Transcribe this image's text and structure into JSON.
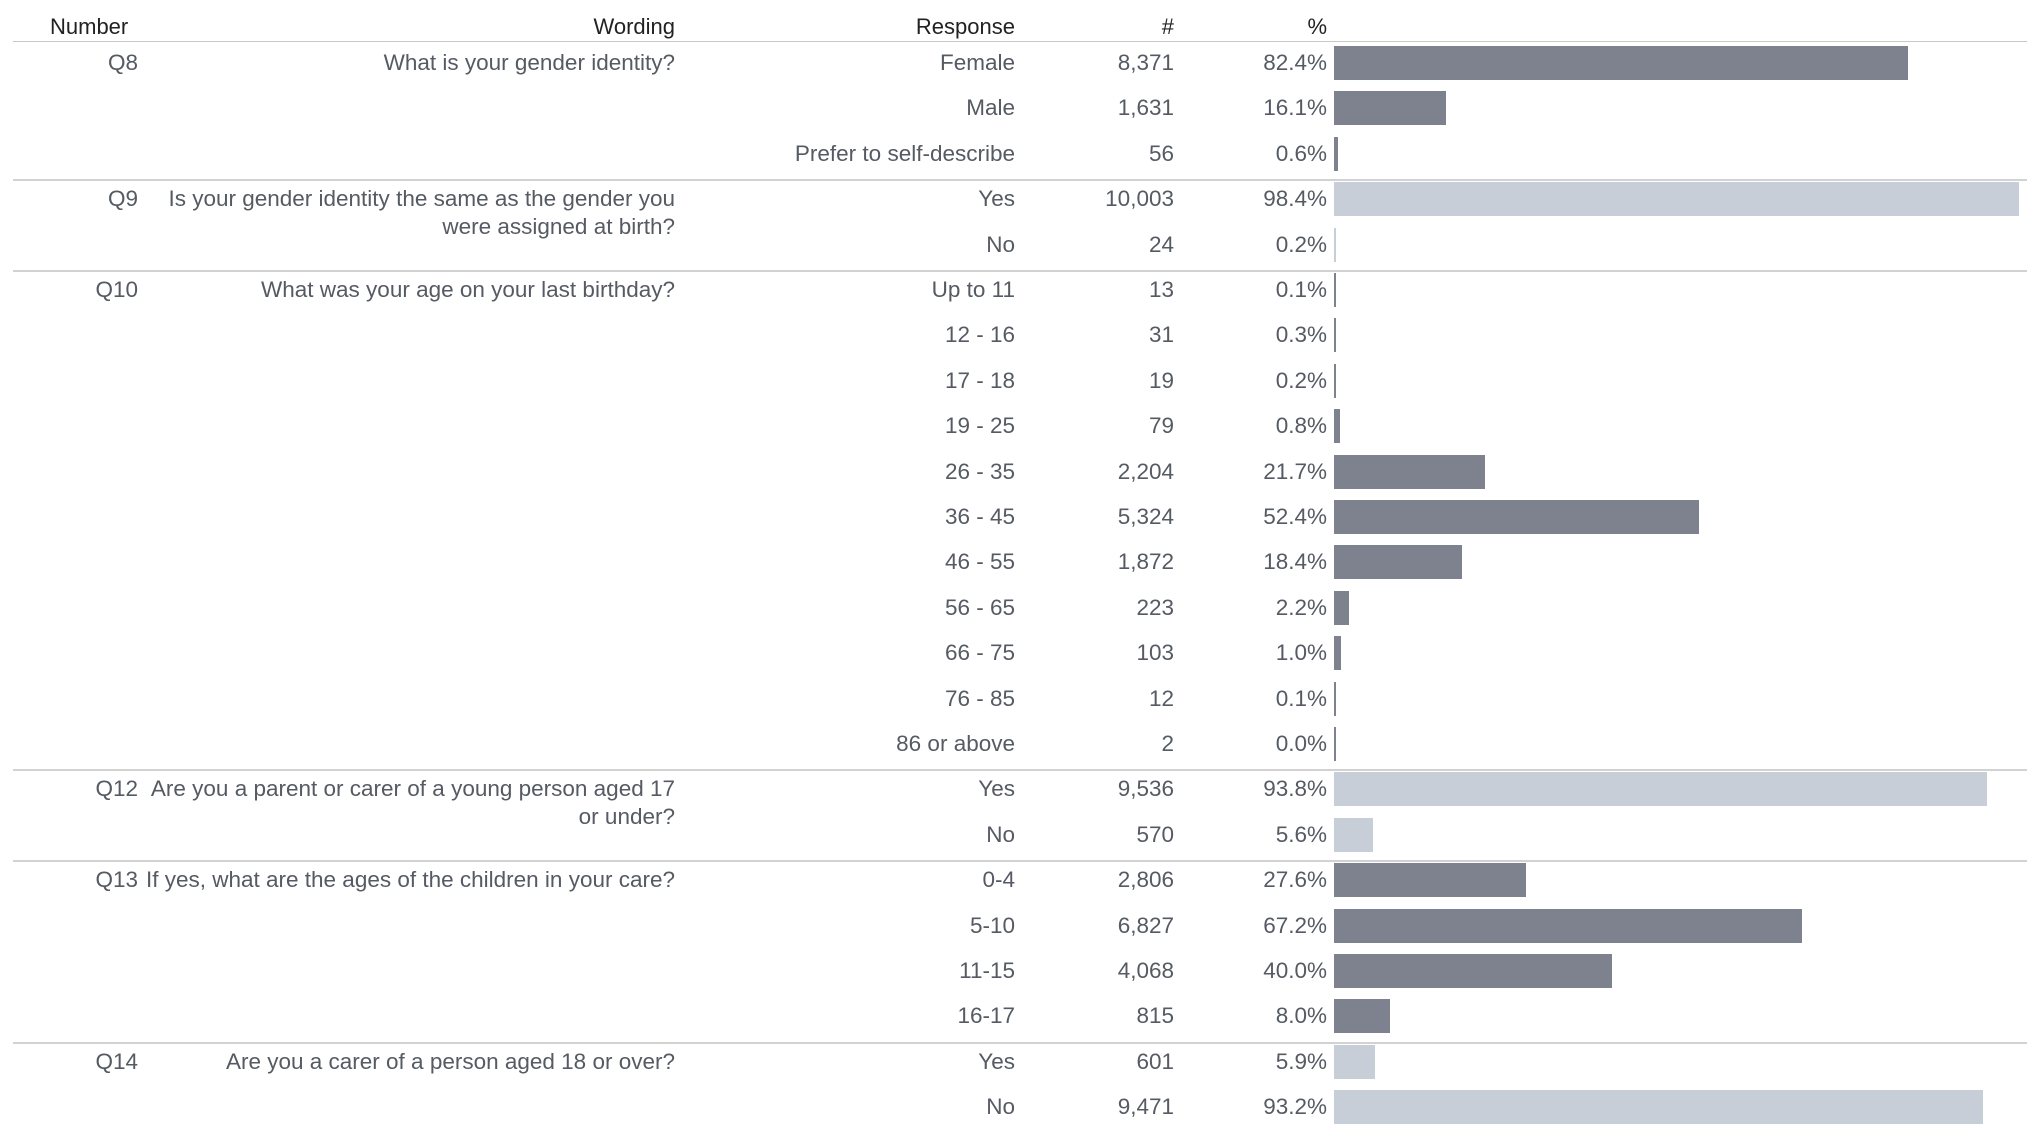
{
  "headers": {
    "number": "Number",
    "wording": "Wording",
    "response": "Response",
    "count": "#",
    "percent": "%"
  },
  "colors": {
    "dark_bar": "#7d828e",
    "light_bar": "#c8ced8",
    "divider": "#d2d2d2"
  },
  "chart_data": {
    "type": "table",
    "value_scale_max": 100,
    "questions": [
      {
        "number": "Q8",
        "wording": "What is your gender identity?",
        "bar_style": "dark",
        "rows": [
          {
            "response": "Female",
            "count": "8,371",
            "percent": "82.4%",
            "value": 82.4
          },
          {
            "response": "Male",
            "count": "1,631",
            "percent": "16.1%",
            "value": 16.1
          },
          {
            "response": "Prefer to self-describe",
            "count": "56",
            "percent": "0.6%",
            "value": 0.6
          }
        ]
      },
      {
        "number": "Q9",
        "wording": "Is your gender identity the same as the gender you were assigned at birth?",
        "bar_style": "light",
        "rows": [
          {
            "response": "Yes",
            "count": "10,003",
            "percent": "98.4%",
            "value": 98.4
          },
          {
            "response": "No",
            "count": "24",
            "percent": "0.2%",
            "value": 0.2
          }
        ]
      },
      {
        "number": "Q10",
        "wording": "What was your age on your last birthday?",
        "bar_style": "dark",
        "rows": [
          {
            "response": "Up to 11",
            "count": "13",
            "percent": "0.1%",
            "value": 0.1
          },
          {
            "response": "12 - 16",
            "count": "31",
            "percent": "0.3%",
            "value": 0.3
          },
          {
            "response": "17 - 18",
            "count": "19",
            "percent": "0.2%",
            "value": 0.2
          },
          {
            "response": "19 - 25",
            "count": "79",
            "percent": "0.8%",
            "value": 0.8
          },
          {
            "response": "26 - 35",
            "count": "2,204",
            "percent": "21.7%",
            "value": 21.7
          },
          {
            "response": "36 - 45",
            "count": "5,324",
            "percent": "52.4%",
            "value": 52.4
          },
          {
            "response": "46 - 55",
            "count": "1,872",
            "percent": "18.4%",
            "value": 18.4
          },
          {
            "response": "56 - 65",
            "count": "223",
            "percent": "2.2%",
            "value": 2.2
          },
          {
            "response": "66 - 75",
            "count": "103",
            "percent": "1.0%",
            "value": 1.0
          },
          {
            "response": "76 - 85",
            "count": "12",
            "percent": "0.1%",
            "value": 0.1
          },
          {
            "response": "86 or above",
            "count": "2",
            "percent": "0.0%",
            "value": 0.0
          }
        ]
      },
      {
        "number": "Q12",
        "wording": "Are you a parent or carer of a young person aged 17 or under?",
        "bar_style": "light",
        "rows": [
          {
            "response": "Yes",
            "count": "9,536",
            "percent": "93.8%",
            "value": 93.8
          },
          {
            "response": "No",
            "count": "570",
            "percent": "5.6%",
            "value": 5.6
          }
        ]
      },
      {
        "number": "Q13",
        "wording": "If yes, what are the ages of the children in your care?",
        "bar_style": "dark",
        "rows": [
          {
            "response": "0-4",
            "count": "2,806",
            "percent": "27.6%",
            "value": 27.6
          },
          {
            "response": "5-10",
            "count": "6,827",
            "percent": "67.2%",
            "value": 67.2
          },
          {
            "response": "11-15",
            "count": "4,068",
            "percent": "40.0%",
            "value": 40.0
          },
          {
            "response": "16-17",
            "count": "815",
            "percent": "8.0%",
            "value": 8.0
          }
        ]
      },
      {
        "number": "Q14",
        "wording": "Are you a carer of a person aged 18 or over?",
        "bar_style": "light",
        "rows": [
          {
            "response": "Yes",
            "count": "601",
            "percent": "5.9%",
            "value": 5.9
          },
          {
            "response": "No",
            "count": "9,471",
            "percent": "93.2%",
            "value": 93.2
          }
        ]
      }
    ]
  }
}
